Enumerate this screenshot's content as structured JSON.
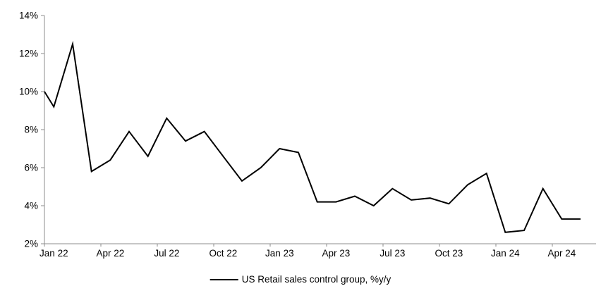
{
  "chart_data": {
    "type": "line",
    "title": "",
    "xlabel": "",
    "ylabel": "",
    "x": [
      "Jan 22",
      "Feb 22",
      "Mar 22",
      "Apr 22",
      "May 22",
      "Jun 22",
      "Jul 22",
      "Aug 22",
      "Sep 22",
      "Oct 22",
      "Nov 22",
      "Dec 22",
      "Jan 23",
      "Feb 23",
      "Mar 23",
      "Apr 23",
      "May 23",
      "Jun 23",
      "Jul 23",
      "Aug 23",
      "Sep 23",
      "Oct 23",
      "Nov 23",
      "Dec 23",
      "Jan 24",
      "Feb 24",
      "Mar 24",
      "Apr 24",
      "May 24"
    ],
    "series": [
      {
        "name": "US Retail sales control group, %y/y",
        "values": [
          9.2,
          12.5,
          5.8,
          6.4,
          7.9,
          6.6,
          8.6,
          7.4,
          7.9,
          6.6,
          5.3,
          6.0,
          7.0,
          6.8,
          4.2,
          4.2,
          4.5,
          4.0,
          4.9,
          4.3,
          4.4,
          4.1,
          5.1,
          5.7,
          2.6,
          2.7,
          4.9,
          3.3,
          3.3
        ]
      }
    ],
    "left_edge_clip_value": 10.0,
    "x_tick_labels": [
      "Jan 22",
      "Apr 22",
      "Jul 22",
      "Oct 22",
      "Jan 23",
      "Apr 23",
      "Jul 23",
      "Oct 23",
      "Jan 24",
      "Apr 24"
    ],
    "x_label_every_n_months": 3,
    "y_tick_labels": [
      "2%",
      "4%",
      "6%",
      "8%",
      "10%",
      "12%",
      "14%"
    ],
    "y_tick_values": [
      2,
      4,
      6,
      8,
      10,
      12,
      14
    ],
    "ylim": [
      2,
      14
    ],
    "grid": "off",
    "legend_position": "bottom-center",
    "colors": {
      "line": "#000000",
      "axis": "#8C8C8C",
      "text": "#000000",
      "background": "#FFFFFF"
    }
  },
  "legend": {
    "label": "US Retail sales control group, %y/y"
  }
}
